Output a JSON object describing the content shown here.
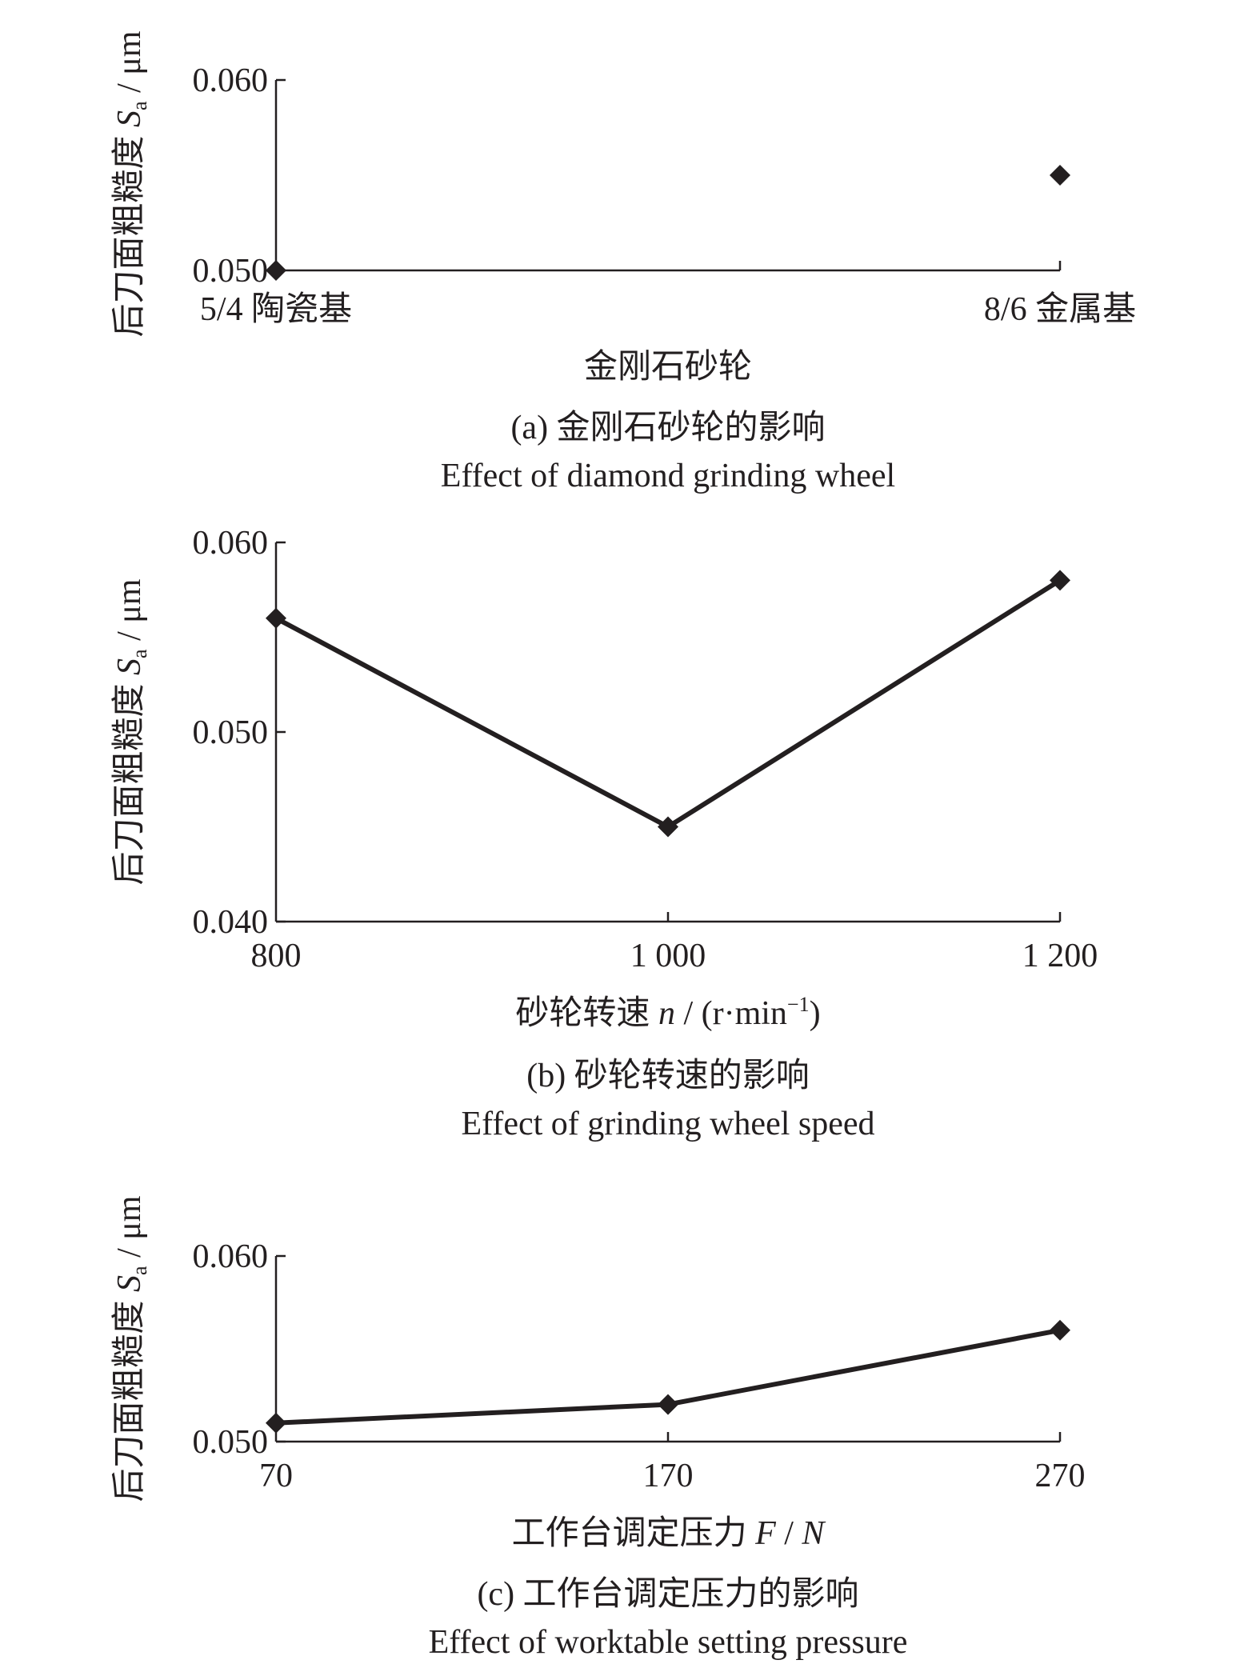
{
  "ylabel": {
    "main": "后刀面粗糙度 ",
    "var": "S",
    "sub": "a",
    "unit": " / μm"
  },
  "chart_data": [
    {
      "id": "a",
      "type": "scatter",
      "categories": [
        "5/4 陶瓷基",
        "8/6 金属基"
      ],
      "values": [
        0.05,
        0.055
      ],
      "ylim": [
        0.05,
        0.06
      ],
      "yticks": [
        "0.050",
        "0.060"
      ],
      "connect": false,
      "xlabel": {
        "main": "金刚石砂轮",
        "var": "",
        "unit": "",
        "sup": "",
        "tail": ""
      },
      "caption_cn": "(a) 金刚石砂轮的影响",
      "caption_en": "Effect of diamond grinding wheel"
    },
    {
      "id": "b",
      "type": "line",
      "categories": [
        "800",
        "1 000",
        "1 200"
      ],
      "values": [
        0.056,
        0.045,
        0.058
      ],
      "ylim": [
        0.04,
        0.06
      ],
      "yticks": [
        "0.040",
        "0.050",
        "0.060"
      ],
      "connect": true,
      "xlabel": {
        "main": "砂轮转速 ",
        "var": "n",
        "unit": " / (r·min",
        "sup": "−1",
        "tail": ")"
      },
      "caption_cn": "(b) 砂轮转速的影响",
      "caption_en": "Effect of grinding wheel speed"
    },
    {
      "id": "c",
      "type": "line",
      "categories": [
        "70",
        "170",
        "270"
      ],
      "values": [
        0.051,
        0.052,
        0.056
      ],
      "ylim": [
        0.05,
        0.06
      ],
      "yticks": [
        "0.050",
        "0.060"
      ],
      "connect": true,
      "xlabel": {
        "main": "工作台调定压力 ",
        "var": "F",
        "unit": " / ",
        "sup": "",
        "tail": "N"
      },
      "caption_cn": "(c) 工作台调定压力的影响",
      "caption_en": "Effect of worktable setting pressure"
    }
  ]
}
